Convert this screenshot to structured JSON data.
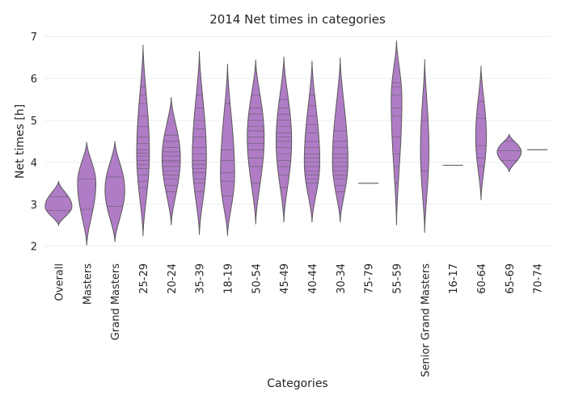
{
  "chart_data": {
    "type": "violin",
    "title": "2014 Net times in categories",
    "xlabel": "Categories",
    "ylabel": "Net times [h]",
    "ylim": [
      1.82,
      7.1
    ],
    "yticks": [
      2,
      3,
      4,
      5,
      6,
      7
    ],
    "grid": "horizontal",
    "fill_color": "#b07cc6",
    "edge_color": "#595959",
    "categories": [
      {
        "name": "Overall",
        "min": 2.5,
        "max": 3.55,
        "mode": 2.95,
        "width": 0.95,
        "lines": [
          2.85,
          3.18
        ]
      },
      {
        "name": "Masters",
        "min": 2.02,
        "max": 4.48,
        "mode": 3.5,
        "width": 0.65,
        "lines": [
          2.88,
          3.6
        ]
      },
      {
        "name": "Grand Masters",
        "min": 2.1,
        "max": 4.5,
        "mode": 3.35,
        "width": 0.7,
        "lines": [
          2.95,
          3.65
        ]
      },
      {
        "name": "25-29",
        "min": 2.24,
        "max": 6.8,
        "mode": 4.2,
        "width": 0.45,
        "lines": [
          3.4,
          3.55,
          3.7,
          3.85,
          3.95,
          4.05,
          4.15,
          4.22,
          4.3,
          4.45,
          4.6,
          4.85,
          5.1,
          5.4,
          5.6,
          5.8
        ]
      },
      {
        "name": "20-24",
        "min": 2.5,
        "max": 5.55,
        "mode": 4.1,
        "width": 0.65,
        "lines": [
          3.3,
          3.45,
          3.6,
          3.7,
          3.8,
          3.9,
          4.0,
          4.05,
          4.15,
          4.25,
          4.35,
          4.5,
          4.65
        ]
      },
      {
        "name": "35-39",
        "min": 2.27,
        "max": 6.65,
        "mode": 4.1,
        "width": 0.5,
        "lines": [
          3.3,
          3.5,
          3.6,
          3.75,
          3.85,
          3.95,
          4.05,
          4.2,
          4.35,
          4.6,
          4.8,
          5.0,
          5.3,
          5.6
        ]
      },
      {
        "name": "18-19",
        "min": 2.25,
        "max": 6.35,
        "mode": 3.7,
        "width": 0.5,
        "lines": [
          3.2,
          3.55,
          3.75,
          4.05,
          4.3,
          5.4
        ]
      },
      {
        "name": "50-54",
        "min": 2.52,
        "max": 6.45,
        "mode": 4.6,
        "width": 0.6,
        "lines": [
          3.5,
          3.9,
          4.1,
          4.3,
          4.45,
          4.6,
          4.75,
          4.85,
          5.0,
          5.15,
          5.3,
          5.6
        ]
      },
      {
        "name": "45-49",
        "min": 2.57,
        "max": 6.52,
        "mode": 4.5,
        "width": 0.55,
        "lines": [
          3.4,
          3.7,
          3.9,
          4.05,
          4.2,
          4.35,
          4.5,
          4.6,
          4.7,
          4.85,
          5.0,
          5.15,
          5.3,
          5.5
        ]
      },
      {
        "name": "40-44",
        "min": 2.57,
        "max": 6.42,
        "mode": 4.0,
        "width": 0.55,
        "lines": [
          3.5,
          3.6,
          3.7,
          3.8,
          3.9,
          4.0,
          4.1,
          4.2,
          4.35,
          4.5,
          4.7,
          4.9,
          5.1,
          5.35,
          5.6
        ]
      },
      {
        "name": "30-34",
        "min": 2.57,
        "max": 6.5,
        "mode": 4.0,
        "width": 0.55,
        "lines": [
          3.3,
          3.45,
          3.6,
          3.7,
          3.8,
          3.9,
          4.0,
          4.1,
          4.2,
          4.35,
          4.5,
          4.75
        ]
      },
      {
        "name": "75-79",
        "min": 3.5,
        "max": 3.5,
        "mode": 3.5,
        "width": 0.8,
        "lines": []
      },
      {
        "name": "55-59",
        "min": 2.5,
        "max": 6.9,
        "mode": 5.5,
        "width": 0.38,
        "lines": [
          3.5,
          3.9,
          4.2,
          4.6,
          5.1,
          5.3,
          5.6,
          5.8,
          5.9
        ]
      },
      {
        "name": "Senior Grand Masters",
        "min": 2.32,
        "max": 6.46,
        "mode": 4.3,
        "width": 0.3,
        "lines": [
          3.8,
          5.0
        ]
      },
      {
        "name": "16-17",
        "min": 3.93,
        "max": 3.93,
        "mode": 3.93,
        "width": 0.8,
        "lines": []
      },
      {
        "name": "60-64",
        "min": 3.1,
        "max": 6.3,
        "mode": 4.6,
        "width": 0.38,
        "lines": [
          3.9,
          4.1,
          4.4,
          5.05,
          5.45
        ]
      },
      {
        "name": "65-69",
        "min": 3.77,
        "max": 4.67,
        "mode": 4.25,
        "width": 0.85,
        "lines": [
          4.05,
          4.28,
          4.5
        ]
      },
      {
        "name": "70-74",
        "min": 4.3,
        "max": 4.3,
        "mode": 4.3,
        "width": 0.8,
        "lines": []
      }
    ]
  }
}
